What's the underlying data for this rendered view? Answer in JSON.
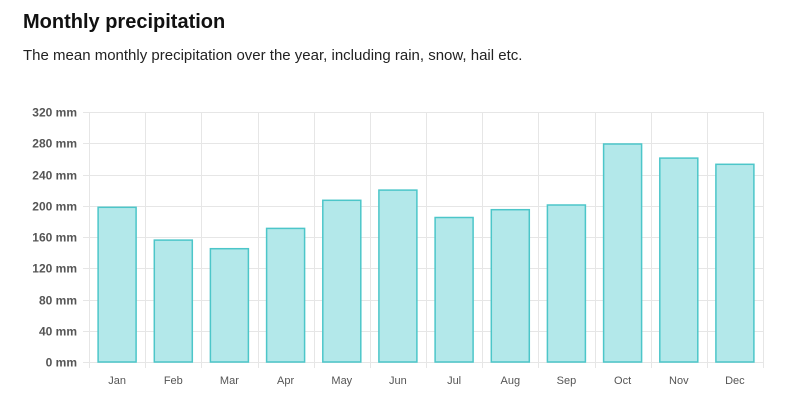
{
  "header": {
    "title": "Monthly precipitation",
    "subtitle": "The mean monthly precipitation over the year, including rain, snow, hail etc."
  },
  "colors": {
    "bar_fill": "#b3e8ea",
    "bar_stroke": "#4cc6c9",
    "grid": "#e6e6e6",
    "axis_text": "#555555"
  },
  "chart_data": {
    "type": "bar",
    "title": "Monthly precipitation",
    "subtitle": "The mean monthly precipitation over the year, including rain, snow, hail etc.",
    "xlabel": "",
    "ylabel": "",
    "categories": [
      "Jan",
      "Feb",
      "Mar",
      "Apr",
      "May",
      "Jun",
      "Jul",
      "Aug",
      "Sep",
      "Oct",
      "Nov",
      "Dec"
    ],
    "values": [
      198,
      156,
      145,
      171,
      207,
      220,
      185,
      195,
      201,
      279,
      261,
      253
    ],
    "unit": "mm",
    "ylim": [
      0,
      320
    ],
    "yticks": [
      0,
      40,
      80,
      120,
      160,
      200,
      240,
      280,
      320
    ],
    "ytick_labels": [
      "0 mm",
      "40 mm",
      "80 mm",
      "120 mm",
      "160 mm",
      "200 mm",
      "240 mm",
      "280 mm",
      "320 mm"
    ],
    "grid": true,
    "legend": "none"
  }
}
